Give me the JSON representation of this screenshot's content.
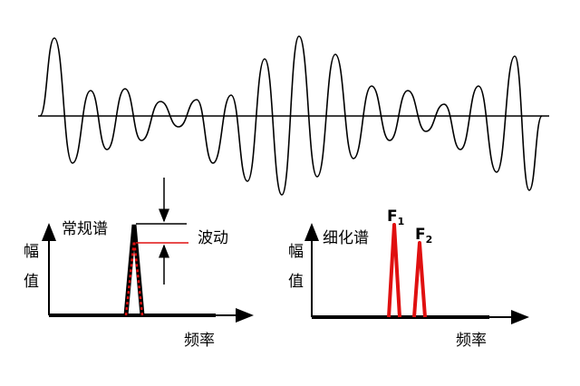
{
  "left_panel": {
    "title": "常规谱",
    "ylabel_1": "幅",
    "ylabel_2": "值",
    "xlabel": "频率",
    "annotation": "波动"
  },
  "right_panel": {
    "title": "细化谱",
    "ylabel_1": "幅",
    "ylabel_2": "值",
    "xlabel": "频率",
    "peak1_main": "F",
    "peak1_sub": "1",
    "peak2_main": "F",
    "peak2_sub": "2"
  },
  "colors": {
    "line": "#000000",
    "accent": "#e01010"
  }
}
